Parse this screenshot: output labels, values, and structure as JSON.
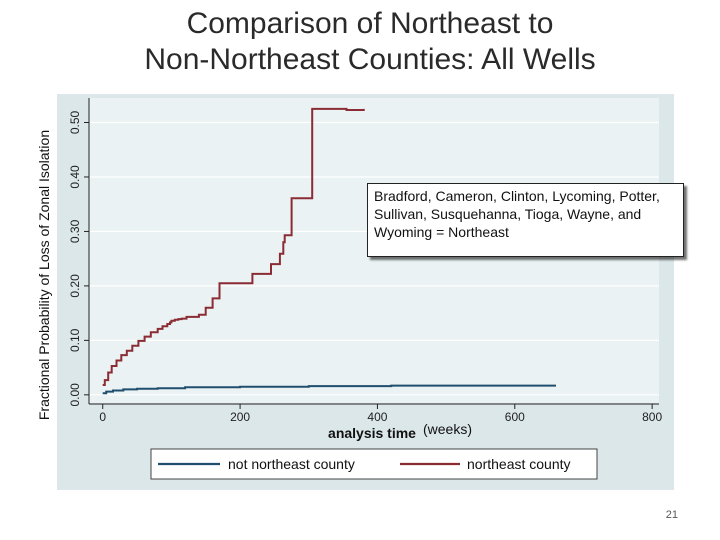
{
  "slide": {
    "title_line1": "Comparison of Northeast to",
    "title_line2": "Non-Northeast Counties: All Wells",
    "y_axis_label": "Fractional Probability of Loss of Zonal Isolation",
    "annotation": "Bradford, Cameron, Clinton, Lycoming, Potter, Sullivan, Susquehanna, Tioga, Wayne, and Wyoming = Northeast",
    "units_note": "(weeks)",
    "page_number": "21"
  },
  "colors": {
    "plot_bg": "#eaf2f3",
    "outer_bg": "#dce7ea",
    "grid": "#ffffff",
    "northeast": "#8b2c34",
    "not_northeast": "#1f4e6e"
  },
  "chart_data": {
    "type": "line",
    "xlabel": "analysis time",
    "ylabel": "",
    "xlim": [
      -20,
      810
    ],
    "ylim": [
      -0.015,
      0.545
    ],
    "x_ticks": [
      0,
      200,
      400,
      600,
      800
    ],
    "x_tick_labels": [
      "0",
      "200",
      "400",
      "600",
      "800"
    ],
    "y_ticks": [
      0.0,
      0.1,
      0.2,
      0.3,
      0.4,
      0.5
    ],
    "y_tick_labels": [
      "0.00",
      "0.10",
      "0.20",
      "0.30",
      "0.40",
      "0.50"
    ],
    "grid": true,
    "legend_position": "bottom",
    "series": [
      {
        "name": "not northeast county",
        "step": true,
        "x": [
          0,
          5,
          15,
          30,
          50,
          80,
          120,
          200,
          300,
          420,
          550,
          660
        ],
        "y": [
          0.003,
          0.006,
          0.008,
          0.01,
          0.011,
          0.012,
          0.014,
          0.015,
          0.016,
          0.017,
          0.017,
          0.017
        ]
      },
      {
        "name": "northeast county",
        "step": true,
        "x": [
          0,
          3,
          8,
          13,
          20,
          27,
          35,
          43,
          52,
          61,
          70,
          80,
          87,
          94,
          98,
          100,
          105,
          110,
          115,
          122,
          140,
          150,
          160,
          170,
          210,
          218,
          225,
          235,
          238,
          245,
          250,
          258,
          263,
          265,
          275,
          295,
          305,
          330,
          355,
          380
        ],
        "y": [
          0.018,
          0.027,
          0.041,
          0.053,
          0.063,
          0.073,
          0.081,
          0.09,
          0.099,
          0.107,
          0.115,
          0.121,
          0.126,
          0.13,
          0.133,
          0.136,
          0.138,
          0.139,
          0.14,
          0.143,
          0.147,
          0.16,
          0.177,
          0.205,
          0.205,
          0.222,
          0.222,
          0.222,
          0.222,
          0.24,
          0.24,
          0.259,
          0.28,
          0.293,
          0.361,
          0.361,
          0.525,
          0.525,
          0.523,
          0.525
        ]
      }
    ]
  }
}
